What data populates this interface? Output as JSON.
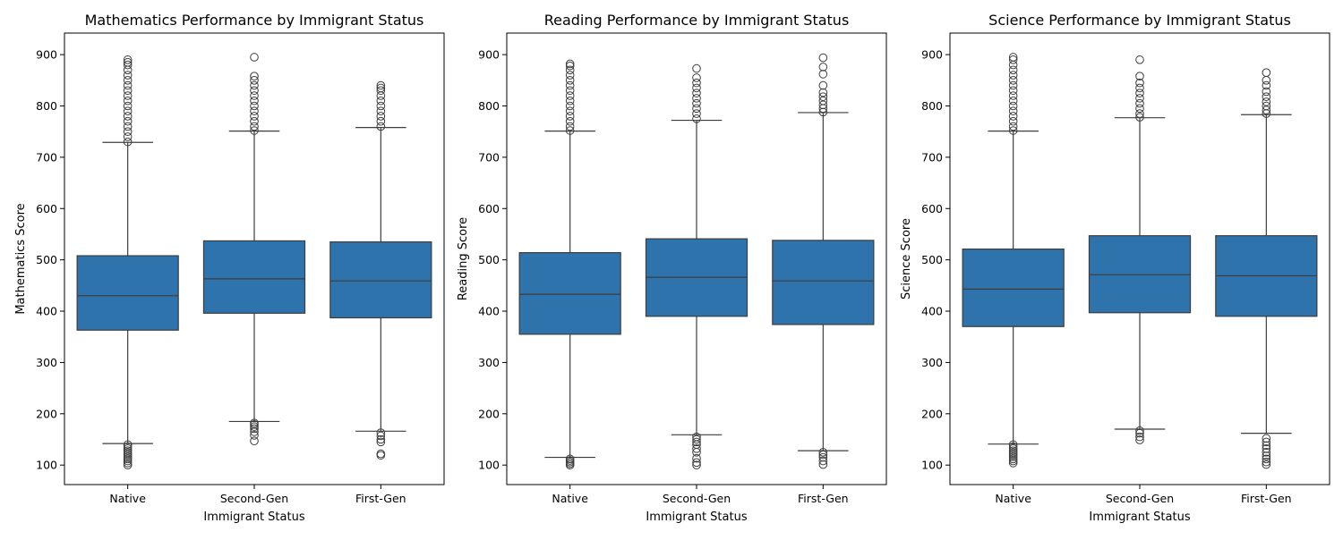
{
  "chart_data": [
    {
      "type": "box",
      "title": "Mathematics Performance by Immigrant Status",
      "xlabel": "Immigrant Status",
      "ylabel": "Mathematics Score",
      "ylim": [
        62,
        942
      ],
      "yticks": [
        "100",
        "200",
        "300",
        "400",
        "500",
        "600",
        "700",
        "800",
        "900"
      ],
      "categories": [
        "Native",
        "Second-Gen",
        "First-Gen"
      ],
      "color": "#2f73ac",
      "boxes": [
        {
          "q1": 363,
          "median": 430,
          "q3": 508,
          "whisker_low": 142,
          "whisker_high": 729,
          "outliers_low": [
            100,
            104,
            108,
            112,
            116,
            120,
            124,
            128,
            132,
            136,
            140
          ],
          "outliers_high": [
            730,
            740,
            750,
            760,
            770,
            780,
            790,
            800,
            810,
            820,
            830,
            840,
            850,
            860,
            870,
            880,
            885,
            890
          ]
        },
        {
          "q1": 396,
          "median": 463,
          "q3": 537,
          "whisker_low": 185,
          "whisker_high": 751,
          "outliers_low": [
            147,
            158,
            165,
            171,
            175,
            179,
            182
          ],
          "outliers_high": [
            752,
            760,
            770,
            780,
            790,
            800,
            810,
            820,
            830,
            840,
            850,
            858,
            895
          ]
        },
        {
          "q1": 387,
          "median": 459,
          "q3": 535,
          "whisker_low": 166,
          "whisker_high": 758,
          "outliers_low": [
            119,
            122,
            145,
            150,
            157,
            163
          ],
          "outliers_high": [
            760,
            770,
            780,
            790,
            800,
            810,
            820,
            830,
            835,
            840
          ]
        }
      ]
    },
    {
      "type": "box",
      "title": "Reading Performance by Immigrant Status",
      "xlabel": "Immigrant Status",
      "ylabel": "Reading Score",
      "ylim": [
        62,
        942
      ],
      "yticks": [
        "100",
        "200",
        "300",
        "400",
        "500",
        "600",
        "700",
        "800",
        "900"
      ],
      "categories": [
        "Native",
        "Second-Gen",
        "First-Gen"
      ],
      "color": "#2f73ac",
      "boxes": [
        {
          "q1": 355,
          "median": 433,
          "q3": 514,
          "whisker_low": 115,
          "whisker_high": 751,
          "outliers_low": [
            100,
            103,
            106,
            109,
            112
          ],
          "outliers_high": [
            752,
            760,
            770,
            780,
            790,
            800,
            810,
            820,
            830,
            840,
            850,
            860,
            870,
            878,
            882
          ]
        },
        {
          "q1": 390,
          "median": 466,
          "q3": 541,
          "whisker_low": 159,
          "whisker_high": 772,
          "outliers_low": [
            100,
            105,
            113,
            125,
            132,
            140,
            145,
            150,
            155
          ],
          "outliers_high": [
            775,
            785,
            795,
            805,
            815,
            825,
            835,
            845,
            855,
            873
          ]
        },
        {
          "q1": 374,
          "median": 459,
          "q3": 538,
          "whisker_low": 128,
          "whisker_high": 787,
          "outliers_low": [
            101,
            108,
            115,
            120,
            125
          ],
          "outliers_high": [
            788,
            795,
            802,
            810,
            818,
            826,
            840,
            862,
            876,
            894
          ]
        }
      ]
    },
    {
      "type": "box",
      "title": "Science Performance by Immigrant Status",
      "xlabel": "Immigrant Status",
      "ylabel": "Science Score",
      "ylim": [
        62,
        942
      ],
      "yticks": [
        "100",
        "200",
        "300",
        "400",
        "500",
        "600",
        "700",
        "800",
        "900"
      ],
      "categories": [
        "Native",
        "Second-Gen",
        "First-Gen"
      ],
      "color": "#2f73ac",
      "boxes": [
        {
          "q1": 370,
          "median": 443,
          "q3": 521,
          "whisker_low": 141,
          "whisker_high": 751,
          "outliers_low": [
            104,
            108,
            112,
            116,
            120,
            124,
            128,
            132,
            136,
            140
          ],
          "outliers_high": [
            752,
            760,
            770,
            780,
            790,
            800,
            810,
            820,
            830,
            840,
            850,
            860,
            870,
            880,
            890,
            895
          ]
        },
        {
          "q1": 397,
          "median": 471,
          "q3": 547,
          "whisker_low": 170,
          "whisker_high": 777,
          "outliers_low": [
            149,
            155,
            162,
            167
          ],
          "outliers_high": [
            778,
            785,
            795,
            805,
            815,
            825,
            835,
            845,
            858,
            890
          ]
        },
        {
          "q1": 390,
          "median": 469,
          "q3": 547,
          "whisker_low": 162,
          "whisker_high": 783,
          "outliers_low": [
            101,
            106,
            112,
            118,
            125,
            132,
            138,
            145,
            152
          ],
          "outliers_high": [
            785,
            792,
            800,
            808,
            818,
            828,
            840,
            850,
            865
          ]
        }
      ]
    }
  ]
}
